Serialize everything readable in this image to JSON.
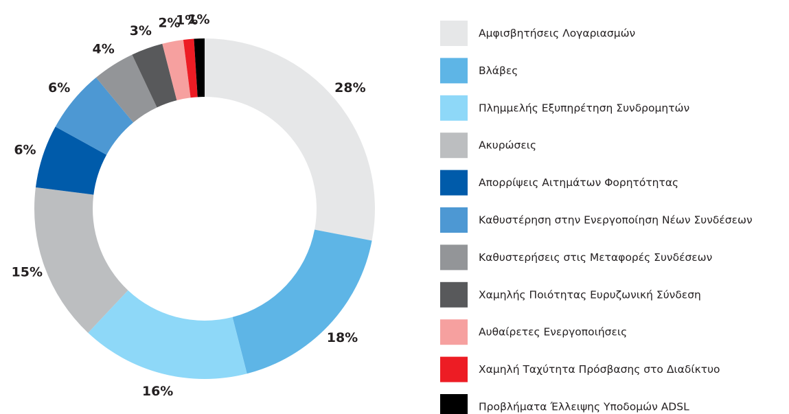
{
  "chart_data": {
    "type": "donut",
    "categories": [
      "Αμφισβητήσεις Λογαριασμών",
      "Βλάβες",
      "Πλημμελής Εξυπηρέτηση Συνδρομητών",
      "Ακυρώσεις",
      "Απορρίψεις Αιτημάτων Φορητότητας",
      "Καθυστέρηση στην Ενεργοποίηση Νέων Συνδέσεων",
      "Καθυστερήσεις στις Μεταφορές Συνδέσεων",
      "Χαμηλής Ποιότητας Ευρυζωνική Σύνδεση",
      "Αυθαίρετες Ενεργοποιήσεις",
      "Χαμηλή Ταχύτητα Πρόσβασης στο Διαδίκτυο",
      "Προβλήματα Έλλειψης Υποδομών ADSL"
    ],
    "values": [
      28,
      18,
      16,
      15,
      6,
      6,
      4,
      3,
      2,
      1,
      1
    ],
    "value_labels": [
      "28%",
      "18%",
      "16%",
      "15%",
      "6%",
      "6%",
      "4%",
      "3%",
      "2%",
      "1%",
      "1%"
    ],
    "colors": [
      "#e6e7e8",
      "#5eb5e6",
      "#8ed8f8",
      "#bcbec0",
      "#005baa",
      "#4d98d3",
      "#939598",
      "#58595b",
      "#f6a09f",
      "#ed1c24",
      "#000000"
    ],
    "legend": "right"
  }
}
